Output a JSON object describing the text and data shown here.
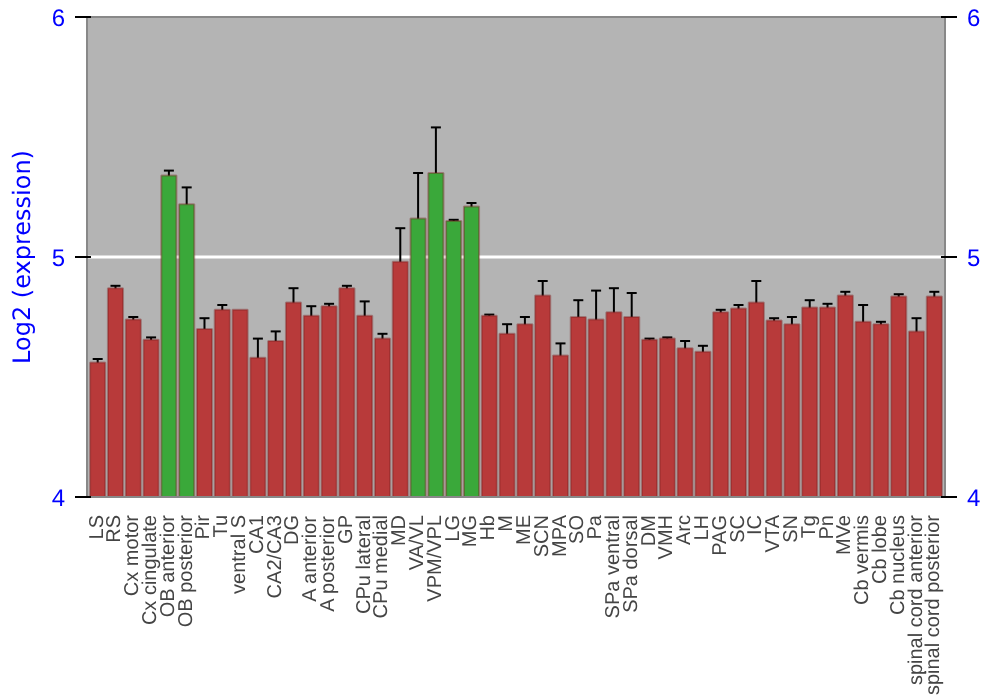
{
  "chart_data": {
    "type": "bar",
    "ylabel": "Log2 (expression)",
    "categories": [
      "LS",
      "RS",
      "Cx motor",
      "Cx cingulate",
      "OB anterior",
      "OB posterior",
      "Pir",
      "Tu",
      "ventral S",
      "CA1",
      "CA2/CA3",
      "DG",
      "A anterior",
      "A posterior",
      "GP",
      "CPu lateral",
      "CPu medial",
      "MD",
      "VA/VL",
      "VPM/VPL",
      "LG",
      "MG",
      "Hb",
      "M",
      "ME",
      "SCN",
      "MPA",
      "SO",
      "Pa",
      "SPa ventral",
      "SPa dorsal",
      "DM",
      "VMH",
      "Arc",
      "LH",
      "PAG",
      "SC",
      "IC",
      "VTA",
      "SN",
      "Tg",
      "Pn",
      "MVe",
      "Cb vermis",
      "Cb lobe",
      "Cb nucleus",
      "spinal cord anterior",
      "spinal cord posterior"
    ],
    "values": [
      4.56,
      4.87,
      4.74,
      4.655,
      5.34,
      5.22,
      4.7,
      4.78,
      4.78,
      4.58,
      4.65,
      4.81,
      4.755,
      4.795,
      4.87,
      4.755,
      4.66,
      4.98,
      5.16,
      5.35,
      5.15,
      5.21,
      4.755,
      4.68,
      4.72,
      4.84,
      4.59,
      4.75,
      4.74,
      4.77,
      4.75,
      4.655,
      4.66,
      4.62,
      4.605,
      4.77,
      4.785,
      4.81,
      4.735,
      4.72,
      4.79,
      4.79,
      4.84,
      4.73,
      4.72,
      4.835,
      4.69,
      4.835
    ],
    "errors": [
      0.015,
      0.01,
      0.01,
      0.01,
      0.02,
      0.07,
      0.045,
      0.02,
      null,
      0.08,
      0.04,
      0.06,
      0.04,
      0.01,
      0.01,
      0.06,
      0.02,
      0.14,
      0.19,
      0.19,
      0.005,
      0.015,
      0.005,
      0.04,
      0.03,
      0.06,
      0.05,
      0.07,
      0.12,
      0.1,
      0.1,
      0.005,
      0.005,
      0.03,
      0.025,
      0.01,
      0.015,
      0.09,
      0.01,
      0.03,
      0.03,
      0.015,
      0.015,
      0.07,
      0.01,
      0.01,
      0.055,
      0.02
    ],
    "colors": [
      "#b83a3a",
      "#b83a3a",
      "#b83a3a",
      "#b83a3a",
      "#3aa83a",
      "#3aa83a",
      "#b83a3a",
      "#b83a3a",
      "#b83a3a",
      "#b83a3a",
      "#b83a3a",
      "#b83a3a",
      "#b83a3a",
      "#b83a3a",
      "#b83a3a",
      "#b83a3a",
      "#b83a3a",
      "#b83a3a",
      "#3aa83a",
      "#3aa83a",
      "#3aa83a",
      "#3aa83a",
      "#b83a3a",
      "#b83a3a",
      "#b83a3a",
      "#b83a3a",
      "#b83a3a",
      "#b83a3a",
      "#b83a3a",
      "#b83a3a",
      "#b83a3a",
      "#b83a3a",
      "#b83a3a",
      "#b83a3a",
      "#b83a3a",
      "#b83a3a",
      "#b83a3a",
      "#b83a3a",
      "#b83a3a",
      "#b83a3a",
      "#b83a3a",
      "#b83a3a",
      "#b83a3a",
      "#b83a3a",
      "#b83a3a",
      "#b83a3a",
      "#b83a3a",
      "#b83a3a"
    ],
    "ylim": [
      4,
      6
    ],
    "yticks": [
      4,
      5,
      6
    ],
    "y2lim": [
      4,
      6
    ],
    "y2ticks": [
      4,
      5,
      6
    ],
    "grid": "y"
  }
}
